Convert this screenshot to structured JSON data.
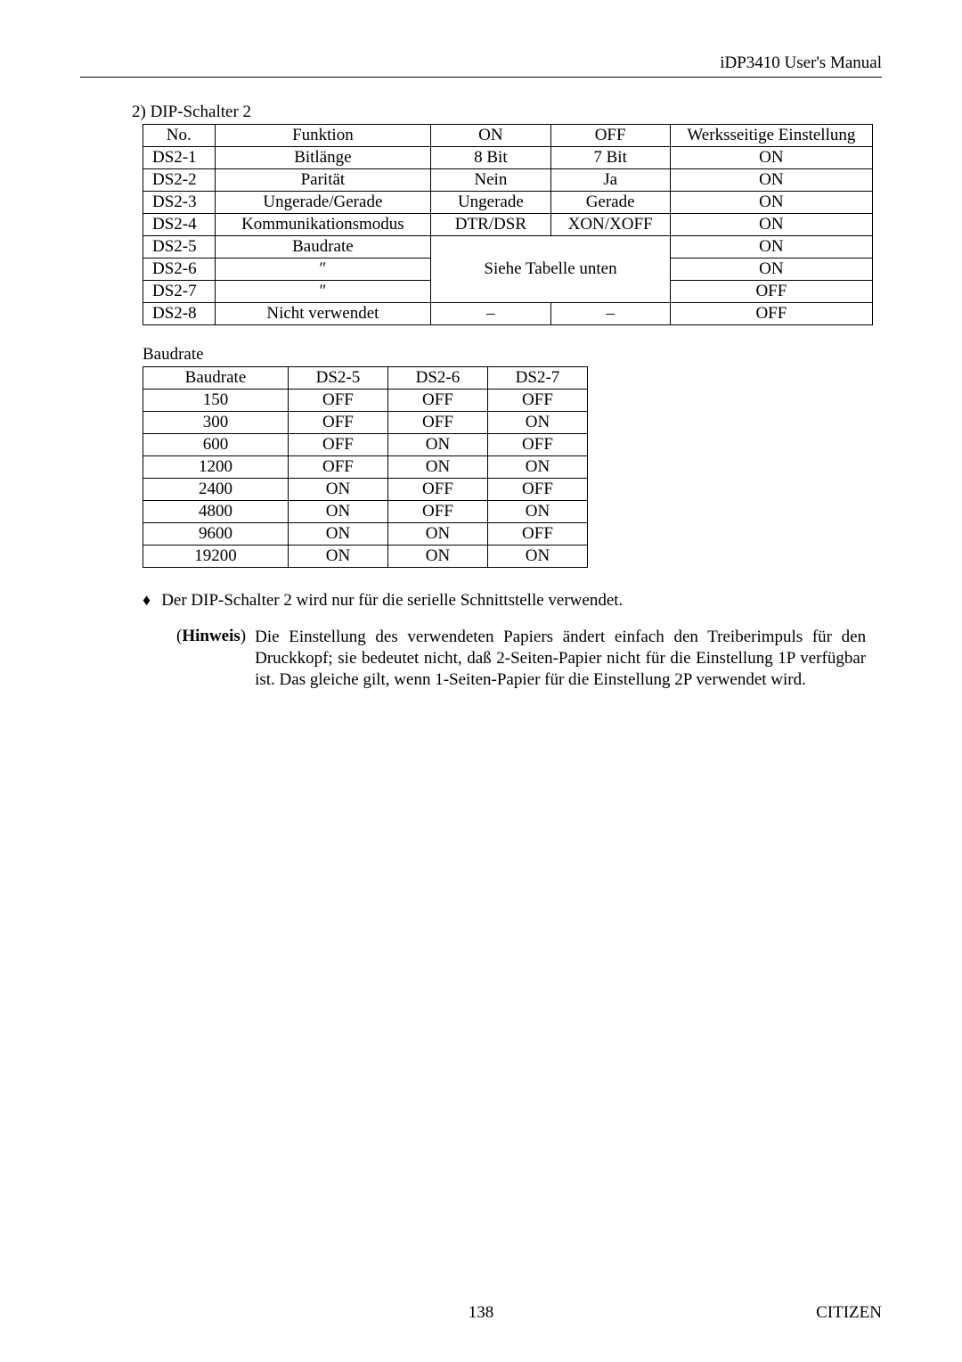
{
  "header": {
    "title": "iDP3410 User's Manual"
  },
  "section1": {
    "title": "2)  DIP-Schalter 2",
    "headers": {
      "no": "No.",
      "func": "Funktion",
      "on": "ON",
      "off": "OFF",
      "def": "Werksseitige Einstellung"
    },
    "span3": "Siehe Tabelle unten",
    "rows": [
      {
        "no": "DS2-1",
        "func": "Bitlänge",
        "on": "8 Bit",
        "off": "7 Bit",
        "def": "ON"
      },
      {
        "no": "DS2-2",
        "func": "Parität",
        "on": "Nein",
        "off": "Ja",
        "def": "ON"
      },
      {
        "no": "DS2-3",
        "func": "Ungerade/Gerade",
        "on": "Ungerade",
        "off": "Gerade",
        "def": "ON"
      },
      {
        "no": "DS2-4",
        "func": "Kommunikationsmodus",
        "on": "DTR/DSR",
        "off": "XON/XOFF",
        "def": "ON"
      },
      {
        "no": "DS2-5",
        "func": "Baudrate",
        "def": "ON"
      },
      {
        "no": "DS2-6",
        "func": "″",
        "def": "ON"
      },
      {
        "no": "DS2-7",
        "func": "″",
        "def": "OFF"
      },
      {
        "no": "DS2-8",
        "func": "Nicht verwendet",
        "on": "–",
        "off": "–",
        "def": "OFF"
      }
    ]
  },
  "section2": {
    "title": "Baudrate",
    "headers": {
      "baud": "Baudrate",
      "d5": "DS2-5",
      "d6": "DS2-6",
      "d7": "DS2-7"
    },
    "rows": [
      {
        "baud": "150",
        "d5": "OFF",
        "d6": "OFF",
        "d7": "OFF"
      },
      {
        "baud": "300",
        "d5": "OFF",
        "d6": "OFF",
        "d7": "ON"
      },
      {
        "baud": "600",
        "d5": "OFF",
        "d6": "ON",
        "d7": "OFF"
      },
      {
        "baud": "1200",
        "d5": "OFF",
        "d6": "ON",
        "d7": "ON"
      },
      {
        "baud": "2400",
        "d5": "ON",
        "d6": "OFF",
        "d7": "OFF"
      },
      {
        "baud": "4800",
        "d5": "ON",
        "d6": "OFF",
        "d7": "ON"
      },
      {
        "baud": "9600",
        "d5": "ON",
        "d6": "ON",
        "d7": "OFF"
      },
      {
        "baud": "19200",
        "d5": "ON",
        "d6": "ON",
        "d7": "ON"
      }
    ]
  },
  "bullet": {
    "symbol": "♦",
    "text": "Der DIP-Schalter 2 wird nur für die serielle Schnittstelle verwendet."
  },
  "note": {
    "label_open": "(",
    "label_bold": "Hinweis",
    "label_close": ")",
    "text": "Die Einstellung des verwendeten Papiers ändert einfach den Treiberimpuls für den Druckkopf; sie bedeutet nicht, daß 2-Seiten-Papier nicht für die Einstellung 1P verfügbar ist. Das gleiche gilt, wenn 1-Seiten-Papier für die Einstellung 2P verwendet wird."
  },
  "footer": {
    "page": "138",
    "brand": "CITIZEN"
  }
}
